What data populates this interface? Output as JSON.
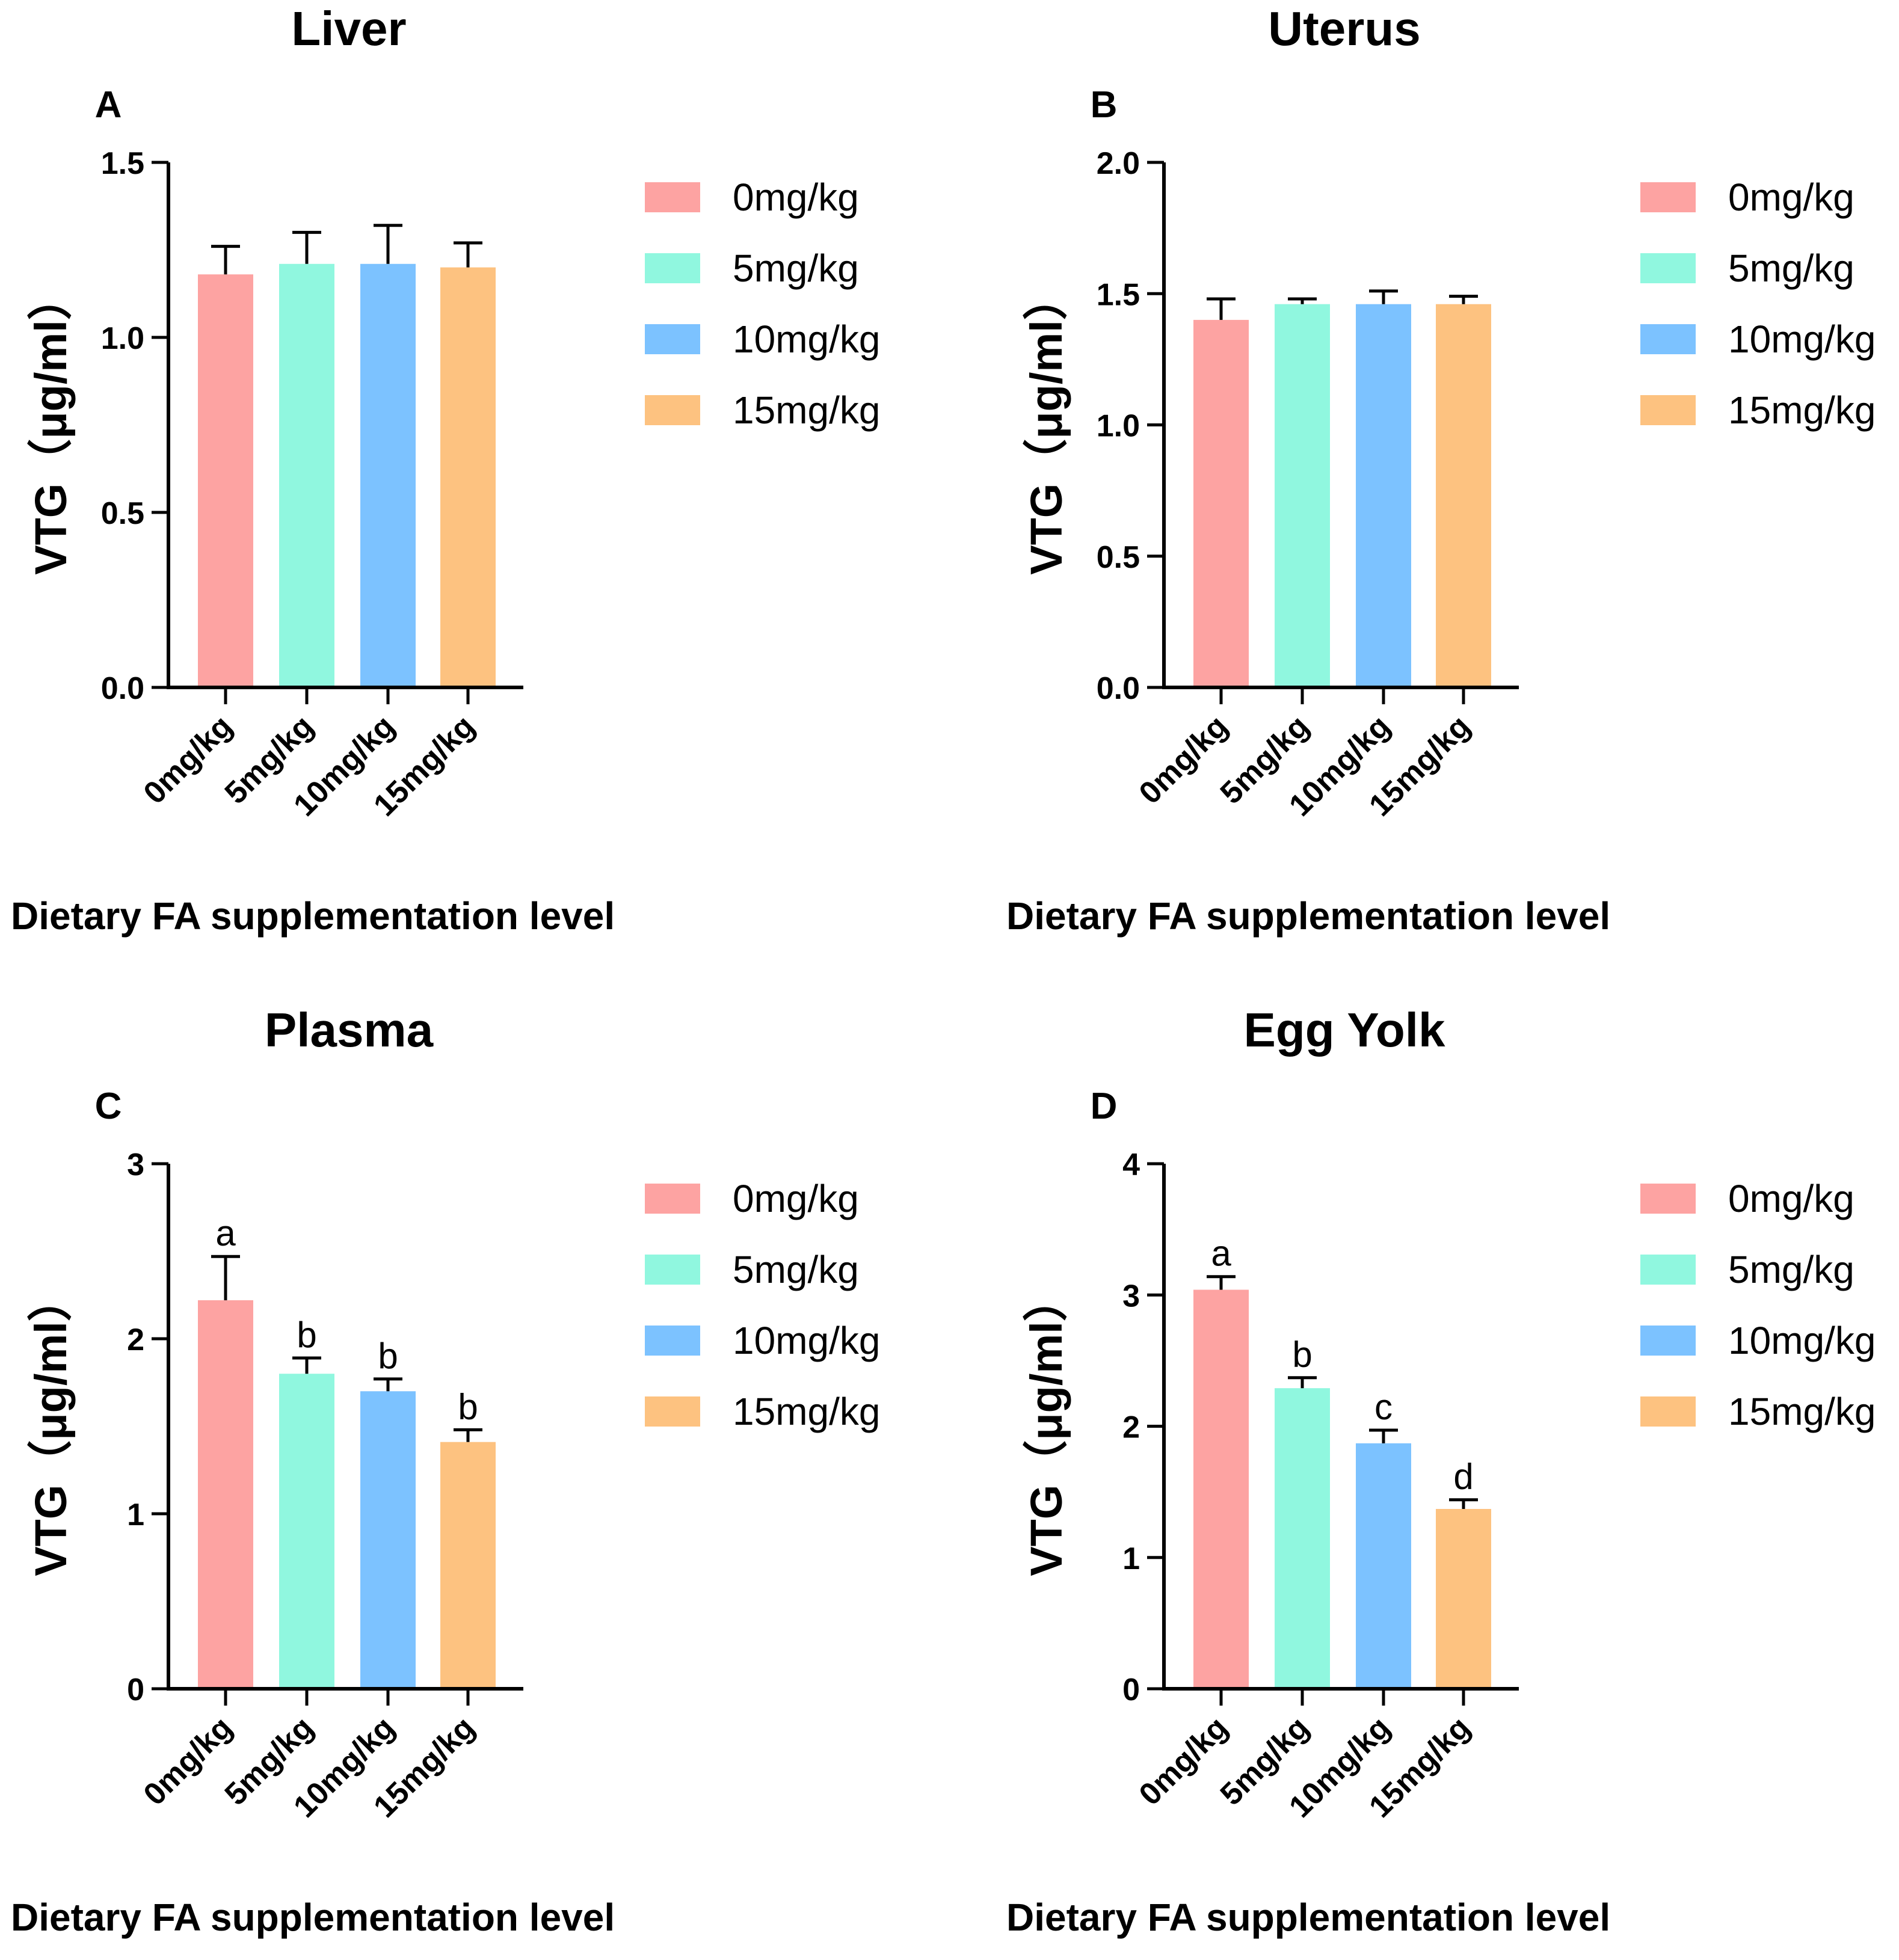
{
  "chart_data": [
    {
      "type": "bar",
      "panel": "A",
      "title": "Liver",
      "ylabel": "VTG（μg/ml）",
      "xlabel": "Dietary FA supplementation level",
      "categories": [
        "0mg/kg",
        "5mg/kg",
        "10mg/kg",
        "15mg/kg"
      ],
      "values": [
        1.18,
        1.21,
        1.21,
        1.2
      ],
      "errors": [
        0.08,
        0.09,
        0.11,
        0.07
      ],
      "significance": [],
      "ylim": [
        0,
        1.5
      ],
      "yticks": [
        "0.0",
        "0.5",
        "1.0",
        "1.5"
      ],
      "legend": [
        "0mg/kg",
        "5mg/kg",
        "10mg/kg",
        "15mg/kg"
      ],
      "legend_position": "right"
    },
    {
      "type": "bar",
      "panel": "B",
      "title": "Uterus",
      "ylabel": "VTG（μg/ml）",
      "xlabel": "Dietary FA supplementation level",
      "categories": [
        "0mg/kg",
        "5mg/kg",
        "10mg/kg",
        "15mg/kg"
      ],
      "values": [
        1.4,
        1.46,
        1.46,
        1.46
      ],
      "errors": [
        0.08,
        0.02,
        0.05,
        0.03
      ],
      "significance": [],
      "ylim": [
        0,
        2.0
      ],
      "yticks": [
        "0.0",
        "0.5",
        "1.0",
        "1.5",
        "2.0"
      ],
      "legend": [
        "0mg/kg",
        "5mg/kg",
        "10mg/kg",
        "15mg/kg"
      ],
      "legend_position": "right"
    },
    {
      "type": "bar",
      "panel": "C",
      "title": "Plasma",
      "ylabel": "VTG（μg/ml）",
      "xlabel": "Dietary FA supplementation level",
      "categories": [
        "0mg/kg",
        "5mg/kg",
        "10mg/kg",
        "15mg/kg"
      ],
      "values": [
        2.22,
        1.8,
        1.7,
        1.41
      ],
      "errors": [
        0.25,
        0.09,
        0.07,
        0.07
      ],
      "significance": [
        "a",
        "b",
        "b",
        "b"
      ],
      "ylim": [
        0,
        3
      ],
      "yticks": [
        "0",
        "1",
        "2",
        "3"
      ],
      "legend": [
        "0mg/kg",
        "5mg/kg",
        "10mg/kg",
        "15mg/kg"
      ],
      "legend_position": "right"
    },
    {
      "type": "bar",
      "panel": "D",
      "title": "Egg Yolk",
      "ylabel": "VTG（μg/ml）",
      "xlabel": "Dietary FA supplementation level",
      "categories": [
        "0mg/kg",
        "5mg/kg",
        "10mg/kg",
        "15mg/kg"
      ],
      "values": [
        3.04,
        2.29,
        1.87,
        1.37
      ],
      "errors": [
        0.1,
        0.08,
        0.1,
        0.07
      ],
      "significance": [
        "a",
        "b",
        "c",
        "d"
      ],
      "ylim": [
        0,
        4
      ],
      "yticks": [
        "0",
        "1",
        "2",
        "3",
        "4"
      ],
      "legend": [
        "0mg/kg",
        "5mg/kg",
        "10mg/kg",
        "15mg/kg"
      ],
      "legend_position": "right"
    }
  ],
  "colors": [
    "#fda3a2",
    "#90f7df",
    "#7cc2ff",
    "#fdc280"
  ]
}
